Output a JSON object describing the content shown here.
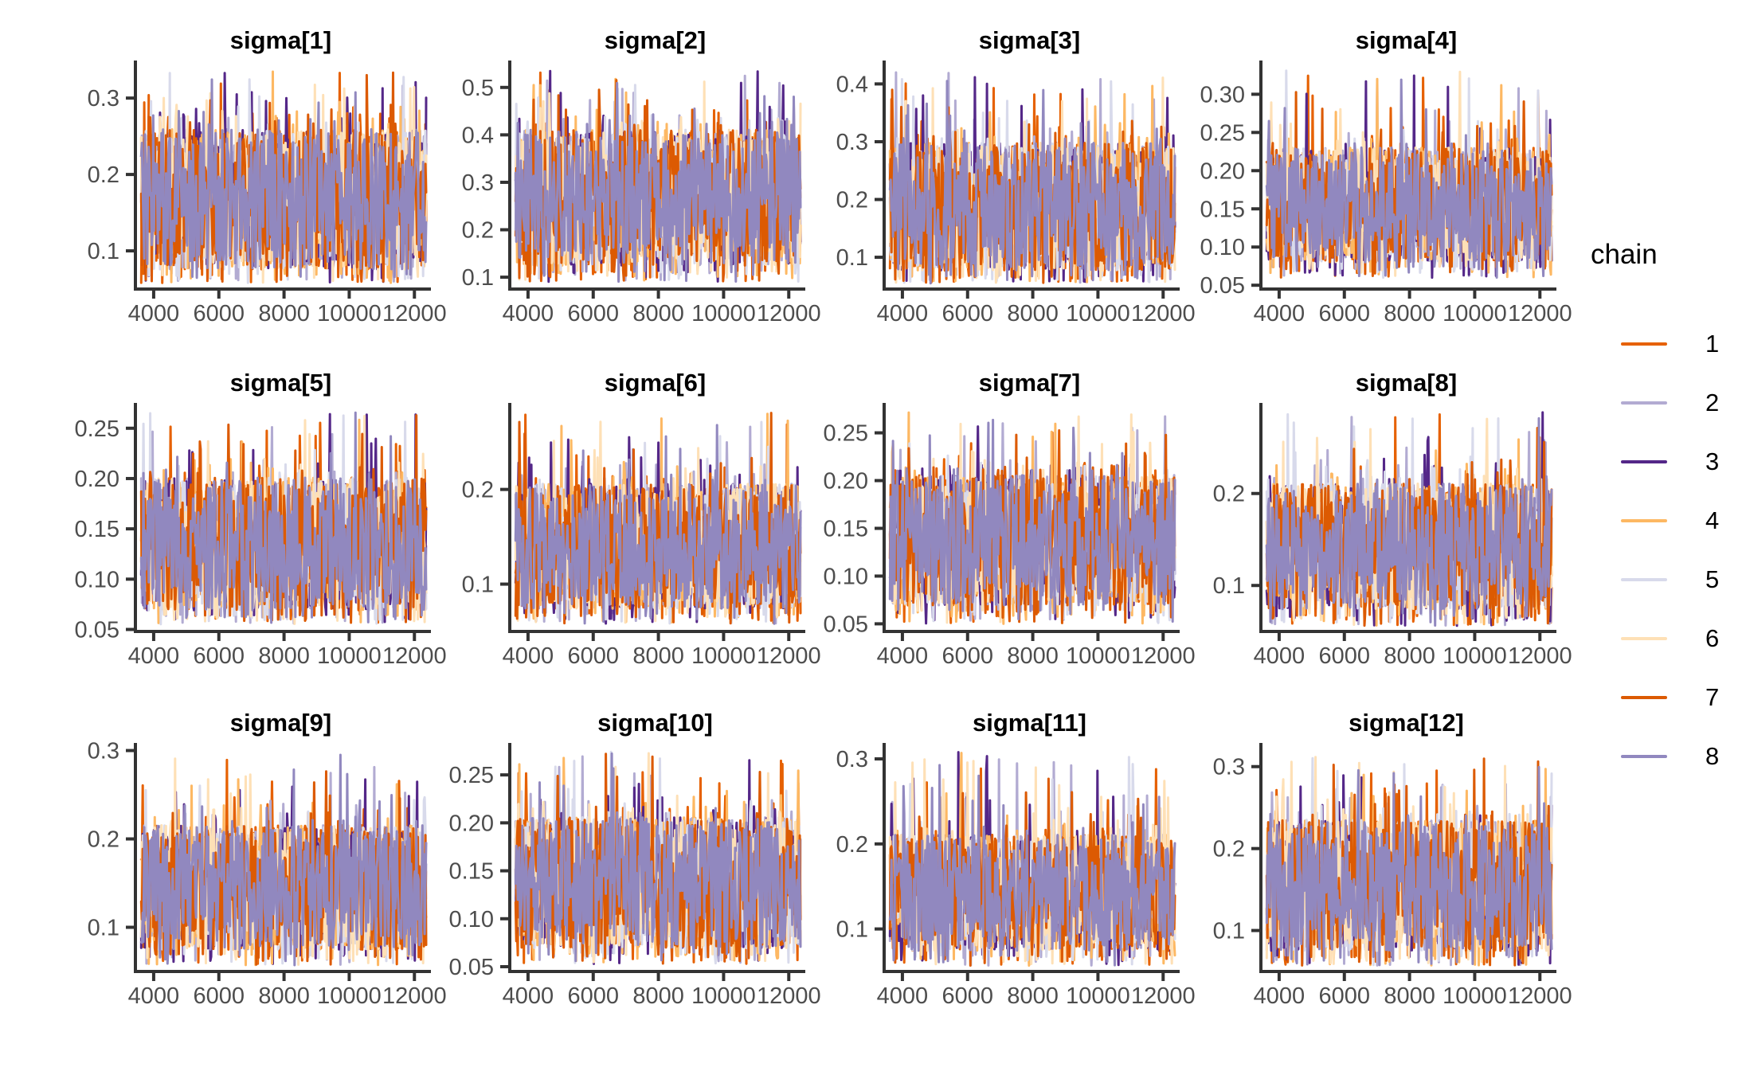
{
  "legend": {
    "title": "chain",
    "items": [
      {
        "label": "1",
        "color": "#E66101"
      },
      {
        "label": "2",
        "color": "#B2ABD2"
      },
      {
        "label": "3",
        "color": "#542788"
      },
      {
        "label": "4",
        "color": "#FDB863"
      },
      {
        "label": "5",
        "color": "#D8DAEB"
      },
      {
        "label": "6",
        "color": "#FEE0B6"
      },
      {
        "label": "7",
        "color": "#DC5A02"
      },
      {
        "label": "8",
        "color": "#9188BF"
      }
    ]
  },
  "styles": {
    "axis_color": "#333333",
    "tick_text_color": "#4D4D4D",
    "title_color": "#000000",
    "background": "#ffffff"
  },
  "chart_data": {
    "type": "line",
    "subtype": "mcmc-trace-plot-grid",
    "grid": {
      "rows": 3,
      "cols": 4
    },
    "legend_position": "right",
    "gridlines": false,
    "x": {
      "range": [
        3440,
        12360
      ],
      "ticks": [
        4000,
        6000,
        8000,
        10000,
        12000
      ],
      "tick_labels": [
        "4000",
        "6000",
        "8000",
        "10000",
        "12000"
      ]
    },
    "series_names": [
      "1",
      "2",
      "3",
      "4",
      "5",
      "6",
      "7",
      "8"
    ],
    "panels": [
      {
        "title": "sigma[1]",
        "y_range": [
          0.05,
          0.345
        ],
        "y_ticks": [
          {
            "value": 0.1,
            "label": "0.1"
          },
          {
            "value": 0.2,
            "label": "0.2"
          },
          {
            "value": 0.3,
            "label": "0.3"
          }
        ],
        "mass_range": [
          0.07,
          0.265
        ],
        "spike_max": 0.335,
        "dip_min": 0.058
      },
      {
        "title": "sigma[2]",
        "y_range": [
          0.075,
          0.55
        ],
        "y_ticks": [
          {
            "value": 0.1,
            "label": "0.1"
          },
          {
            "value": 0.2,
            "label": "0.2"
          },
          {
            "value": 0.3,
            "label": "0.3"
          },
          {
            "value": 0.4,
            "label": "0.4"
          },
          {
            "value": 0.5,
            "label": "0.5"
          }
        ],
        "mass_range": [
          0.115,
          0.42
        ],
        "spike_max": 0.535,
        "dip_min": 0.09
      },
      {
        "title": "sigma[3]",
        "y_range": [
          0.045,
          0.435
        ],
        "y_ticks": [
          {
            "value": 0.1,
            "label": "0.1"
          },
          {
            "value": 0.2,
            "label": "0.2"
          },
          {
            "value": 0.3,
            "label": "0.3"
          },
          {
            "value": 0.4,
            "label": "0.4"
          }
        ],
        "mass_range": [
          0.07,
          0.305
        ],
        "spike_max": 0.425,
        "dip_min": 0.055
      },
      {
        "title": "sigma[4]",
        "y_range": [
          0.045,
          0.34
        ],
        "y_ticks": [
          {
            "value": 0.05,
            "label": "0.05"
          },
          {
            "value": 0.1,
            "label": "0.10"
          },
          {
            "value": 0.15,
            "label": "0.15"
          },
          {
            "value": 0.2,
            "label": "0.20"
          },
          {
            "value": 0.25,
            "label": "0.25"
          },
          {
            "value": 0.3,
            "label": "0.30"
          }
        ],
        "mass_range": [
          0.075,
          0.235
        ],
        "spike_max": 0.332,
        "dip_min": 0.06
      },
      {
        "title": "sigma[5]",
        "y_range": [
          0.048,
          0.272
        ],
        "y_ticks": [
          {
            "value": 0.05,
            "label": "0.05"
          },
          {
            "value": 0.1,
            "label": "0.10"
          },
          {
            "value": 0.15,
            "label": "0.15"
          },
          {
            "value": 0.2,
            "label": "0.20"
          },
          {
            "value": 0.25,
            "label": "0.25"
          }
        ],
        "mass_range": [
          0.065,
          0.205
        ],
        "spike_max": 0.266,
        "dip_min": 0.055
      },
      {
        "title": "sigma[6]",
        "y_range": [
          0.05,
          0.288
        ],
        "y_ticks": [
          {
            "value": 0.1,
            "label": "0.1"
          },
          {
            "value": 0.2,
            "label": "0.2"
          }
        ],
        "mass_range": [
          0.07,
          0.21
        ],
        "spike_max": 0.282,
        "dip_min": 0.058
      },
      {
        "title": "sigma[7]",
        "y_range": [
          0.042,
          0.278
        ],
        "y_ticks": [
          {
            "value": 0.05,
            "label": "0.05"
          },
          {
            "value": 0.1,
            "label": "0.10"
          },
          {
            "value": 0.15,
            "label": "0.15"
          },
          {
            "value": 0.2,
            "label": "0.20"
          },
          {
            "value": 0.25,
            "label": "0.25"
          }
        ],
        "mass_range": [
          0.065,
          0.21
        ],
        "spike_max": 0.272,
        "dip_min": 0.05
      },
      {
        "title": "sigma[8]",
        "y_range": [
          0.05,
          0.295
        ],
        "y_ticks": [
          {
            "value": 0.1,
            "label": "0.1"
          },
          {
            "value": 0.2,
            "label": "0.2"
          }
        ],
        "mass_range": [
          0.07,
          0.215
        ],
        "spike_max": 0.289,
        "dip_min": 0.056
      },
      {
        "title": "sigma[9]",
        "y_range": [
          0.05,
          0.305
        ],
        "y_ticks": [
          {
            "value": 0.1,
            "label": "0.1"
          },
          {
            "value": 0.2,
            "label": "0.2"
          },
          {
            "value": 0.3,
            "label": "0.3"
          }
        ],
        "mass_range": [
          0.07,
          0.22
        ],
        "spike_max": 0.298,
        "dip_min": 0.057
      },
      {
        "title": "sigma[10]",
        "y_range": [
          0.045,
          0.28
        ],
        "y_ticks": [
          {
            "value": 0.05,
            "label": "0.05"
          },
          {
            "value": 0.1,
            "label": "0.10"
          },
          {
            "value": 0.15,
            "label": "0.15"
          },
          {
            "value": 0.2,
            "label": "0.20"
          },
          {
            "value": 0.25,
            "label": "0.25"
          }
        ],
        "mass_range": [
          0.065,
          0.21
        ],
        "spike_max": 0.274,
        "dip_min": 0.053
      },
      {
        "title": "sigma[11]",
        "y_range": [
          0.05,
          0.315
        ],
        "y_ticks": [
          {
            "value": 0.1,
            "label": "0.1"
          },
          {
            "value": 0.2,
            "label": "0.2"
          },
          {
            "value": 0.3,
            "label": "0.3"
          }
        ],
        "mass_range": [
          0.07,
          0.215
        ],
        "spike_max": 0.308,
        "dip_min": 0.057
      },
      {
        "title": "sigma[12]",
        "y_range": [
          0.05,
          0.325
        ],
        "y_ticks": [
          {
            "value": 0.1,
            "label": "0.1"
          },
          {
            "value": 0.2,
            "label": "0.2"
          },
          {
            "value": 0.3,
            "label": "0.3"
          }
        ],
        "mass_range": [
          0.07,
          0.24
        ],
        "spike_max": 0.318,
        "dip_min": 0.057
      }
    ]
  }
}
